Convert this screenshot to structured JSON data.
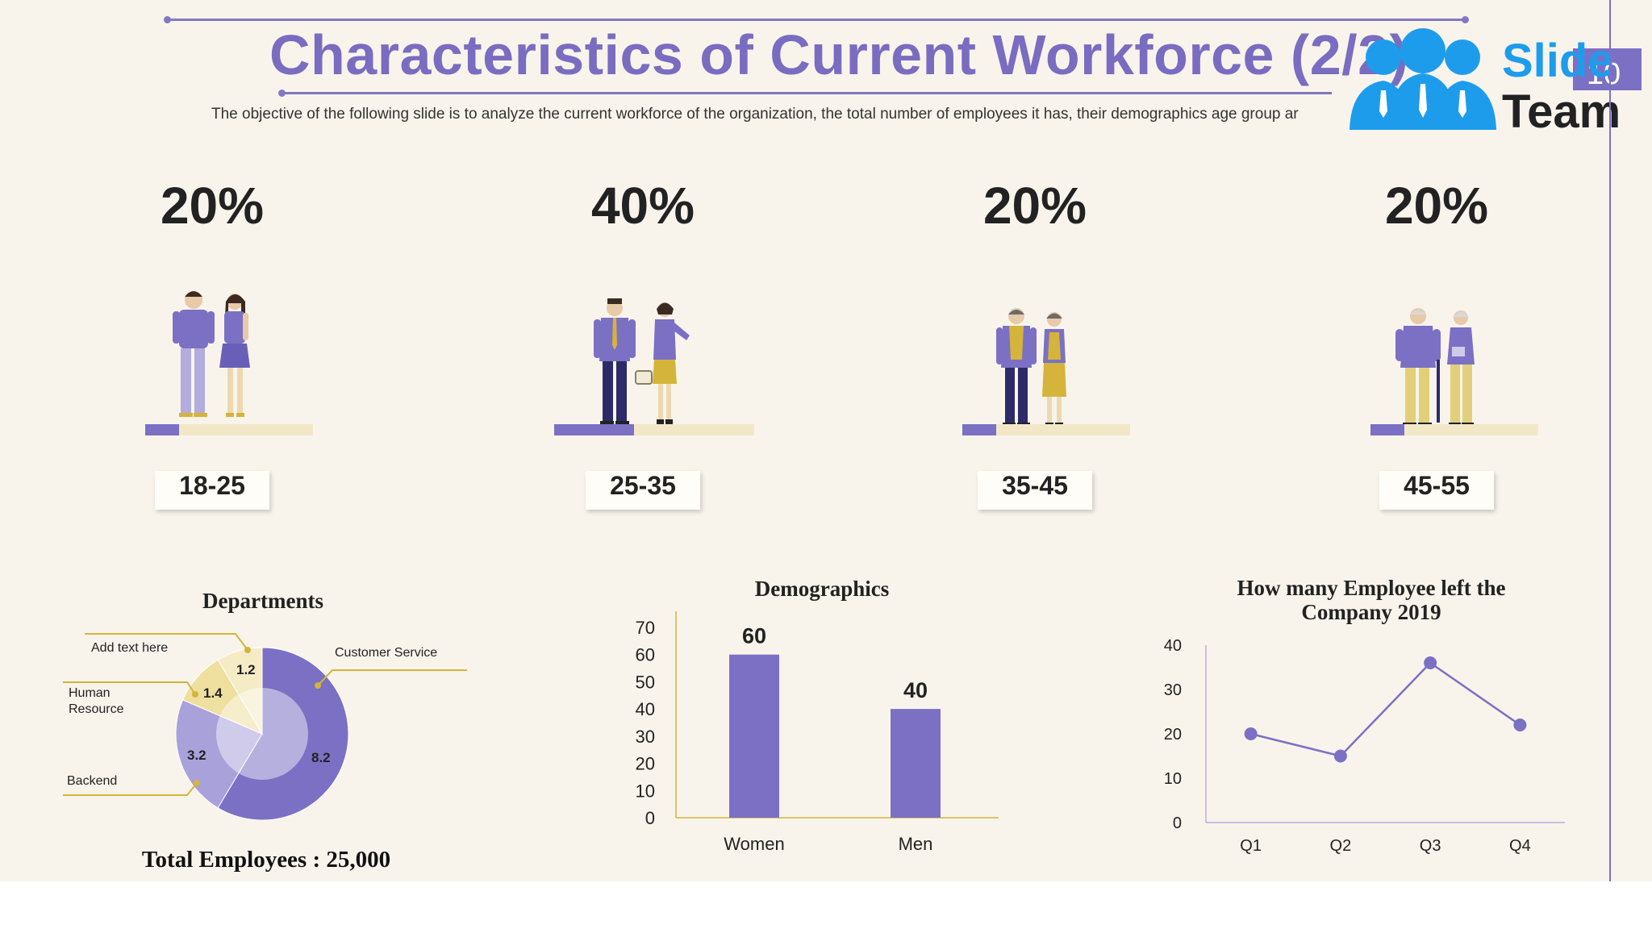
{
  "header": {
    "title": "Characteristics of Current Workforce (2/2)",
    "subtitle": "The objective of the following slide is to analyze the current workforce of the organization, the total number of employees it has, their demographics age group ar",
    "logo_text_1": "Slide",
    "logo_text_2": "Team",
    "page_number": "10"
  },
  "age_groups": [
    {
      "percent_label": "20%",
      "range": "18-25",
      "share": 0.2
    },
    {
      "percent_label": "40%",
      "range": "25-35",
      "share": 0.4
    },
    {
      "percent_label": "20%",
      "range": "35-45",
      "share": 0.2
    },
    {
      "percent_label": "20%",
      "range": "45-55",
      "share": 0.2
    }
  ],
  "colors": {
    "accent": "#7b70c4",
    "accent_light": "#a9a1da",
    "accent_lighter": "#cfcaea",
    "gold": "#d4b43a",
    "cream": "#f2e8c8",
    "background": "#f8f4ec"
  },
  "departments": {
    "title": "Departments",
    "total_label": "Total Employees : 25,000",
    "callouts": {
      "add_text": "Add text here",
      "customer_service": "Customer Service",
      "human_resource_1": "Human",
      "human_resource_2": "Resource",
      "backend": "Backend"
    }
  },
  "demographics": {
    "title": "Demographics"
  },
  "attrition": {
    "title_line1": "How many Employee left the",
    "title_line2": "Company  2019"
  },
  "chart_data": [
    {
      "type": "pie",
      "title": "Departments",
      "slices": [
        {
          "label": "Customer Service",
          "value": 8.2,
          "color": "#7b70c4"
        },
        {
          "label": "Backend",
          "value": 3.2,
          "color": "#a9a1da"
        },
        {
          "label": "Human Resource",
          "value": 1.4,
          "color": "#efe0a0"
        },
        {
          "label": "Add text here",
          "value": 1.2,
          "color": "#f5ecc6"
        }
      ],
      "value_labels": [
        "8.2",
        "3.2",
        "1.4",
        "1.2"
      ]
    },
    {
      "type": "bar",
      "title": "Demographics",
      "categories": [
        "Women",
        "Men"
      ],
      "values": [
        60,
        40
      ],
      "value_labels": [
        "60",
        "40"
      ],
      "ylim": [
        0,
        70
      ],
      "yticks": [
        "0",
        "10",
        "20",
        "30",
        "40",
        "50",
        "60",
        "70"
      ],
      "color": "#7b70c4"
    },
    {
      "type": "line",
      "title": "How many Employee left the Company  2019",
      "categories": [
        "Q1",
        "Q2",
        "Q3",
        "Q4"
      ],
      "values": [
        20,
        15,
        36,
        22
      ],
      "ylim": [
        0,
        40
      ],
      "yticks": [
        "0",
        "10",
        "20",
        "30",
        "40"
      ],
      "color": "#7b70c4"
    }
  ]
}
